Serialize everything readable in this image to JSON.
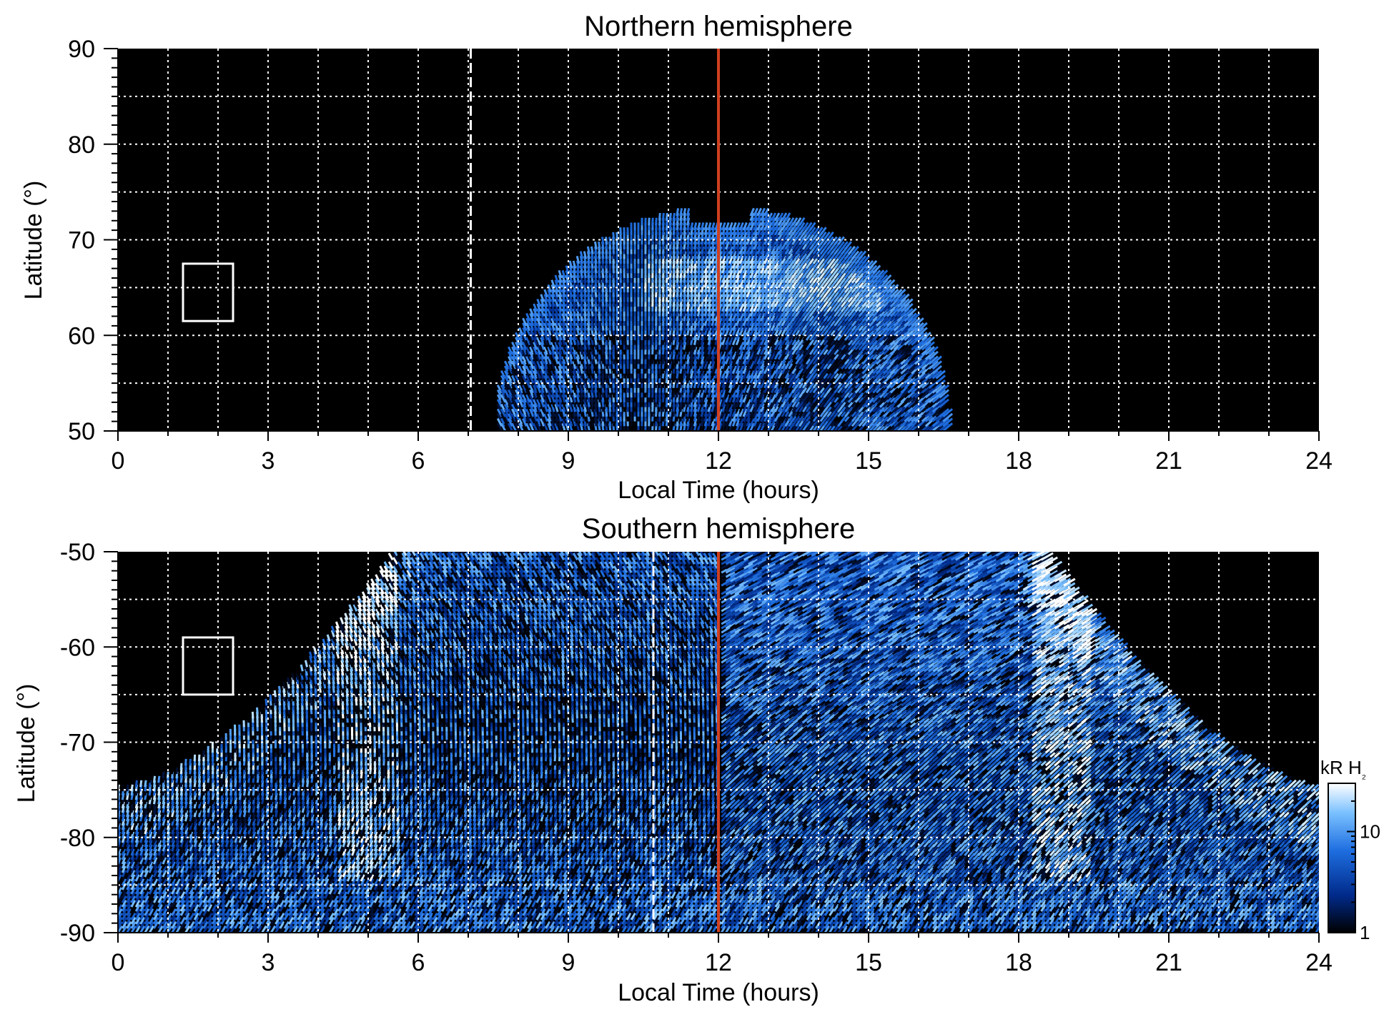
{
  "chart_data": [
    {
      "type": "heatmap",
      "title": "Northern hemisphere",
      "xlabel": "Local Time (hours)",
      "ylabel": "Latitude (°)",
      "xlim": [
        0,
        24
      ],
      "ylim": [
        50,
        90
      ],
      "xticks": [
        "0",
        "3",
        "6",
        "9",
        "12",
        "15",
        "18",
        "21",
        "24"
      ],
      "yticks": [
        "50",
        "60",
        "70",
        "80",
        "90"
      ],
      "grid": true,
      "background": "#000000",
      "emission_region": {
        "lt_start": 7.6,
        "lt_end": 16.5,
        "peak_lat": 73,
        "bright_band_lat": [
          62,
          68
        ],
        "bright_band_lt": [
          10.5,
          15.2
        ]
      },
      "noon_line": {
        "lt": 12,
        "color": "#d04020"
      },
      "dashed_line": {
        "lt": 7.05,
        "color": "#ffffff"
      },
      "box": {
        "lt": [
          1.3,
          2.3
        ],
        "lat": [
          61.5,
          67.5
        ],
        "color": "#ffffff"
      }
    },
    {
      "type": "heatmap",
      "title": "Southern hemisphere",
      "xlabel": "Local Time (hours)",
      "ylabel": "Latitude (°)",
      "xlim": [
        0,
        24
      ],
      "ylim": [
        -90,
        -50
      ],
      "xticks": [
        "0",
        "3",
        "6",
        "9",
        "12",
        "15",
        "18",
        "21",
        "24"
      ],
      "yticks": [
        "-90",
        "-80",
        "-70",
        "-60",
        "-50"
      ],
      "grid": true,
      "background": "#000000",
      "emission_region": {
        "lt_start": 0,
        "lt_end": 24,
        "edge_lat_at_0_24": -75,
        "oval_peak_lt": [
          5.0,
          18.8
        ]
      },
      "noon_line": {
        "lt": 12,
        "color": "#d04020"
      },
      "dashed_line": {
        "lt": 10.7,
        "color": "#ffffff"
      },
      "box": {
        "lt": [
          1.3,
          2.3
        ],
        "lat": [
          -65,
          -59
        ],
        "color": "#ffffff"
      }
    }
  ],
  "colorbar": {
    "title": "kR H₂",
    "scale": "log",
    "range": [
      1,
      30
    ],
    "ticks": [
      "1",
      "10"
    ],
    "colors": [
      "#000000",
      "#002a8a",
      "#1e6ee0",
      "#79c0ff",
      "#ffffff"
    ]
  },
  "labels": {
    "north_title": "Northern hemisphere",
    "south_title": "Southern hemisphere",
    "xlabel": "Local Time (hours)",
    "ylabel": "Latitude (°)",
    "cb_title_main": "kR H",
    "cb_title_sub": "₂"
  }
}
